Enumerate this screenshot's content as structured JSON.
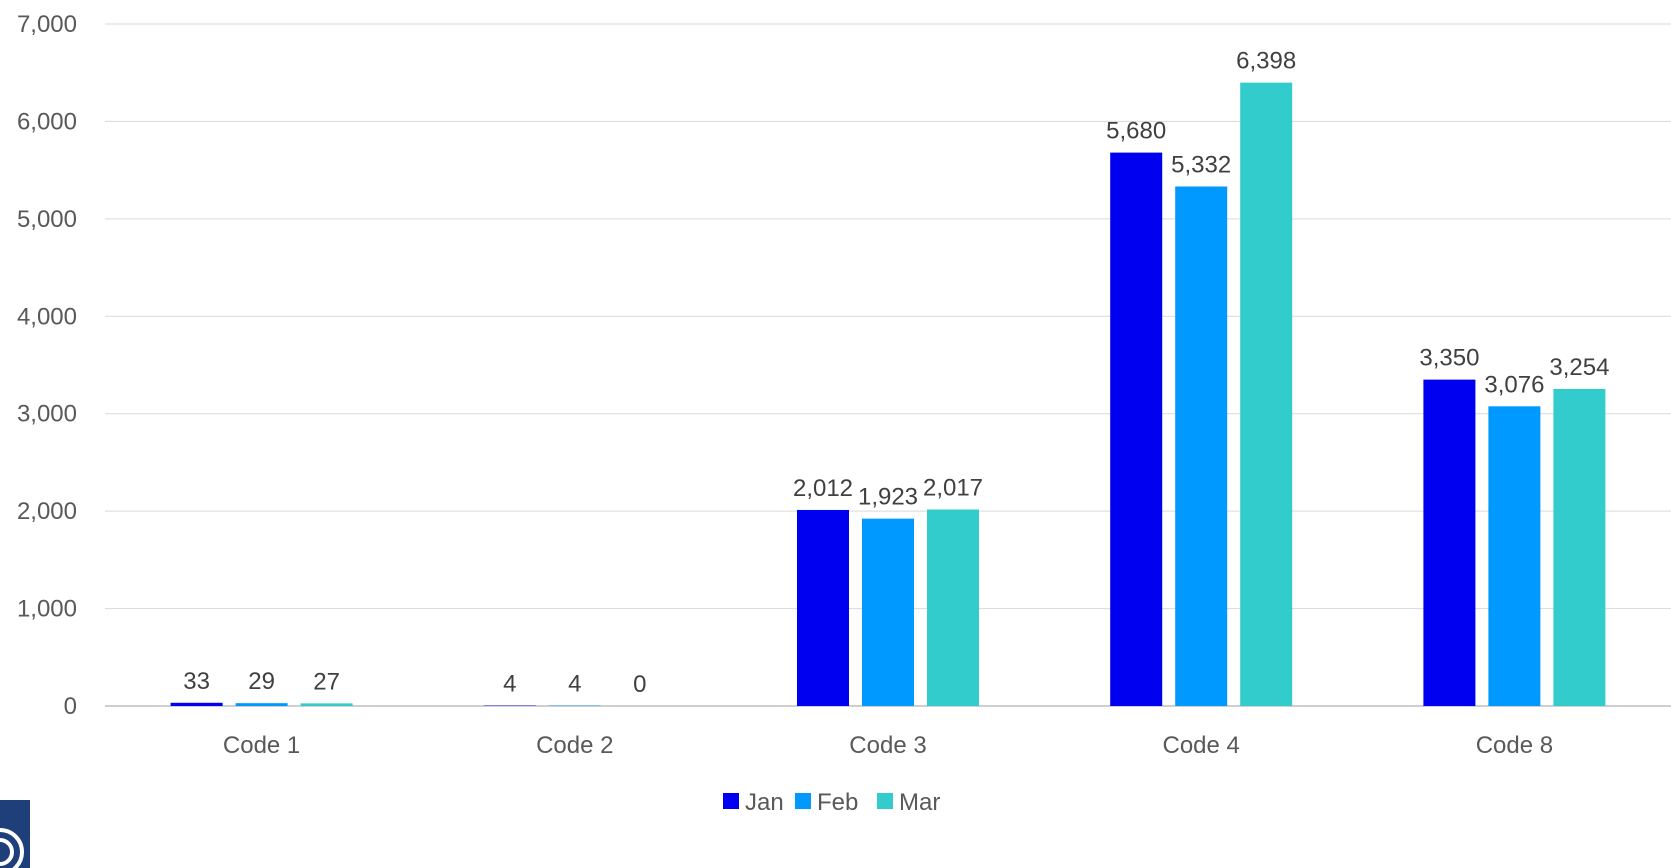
{
  "chart_data": {
    "type": "bar",
    "categories": [
      "Code 1",
      "Code 2",
      "Code 3",
      "Code 4",
      "Code 8"
    ],
    "series": [
      {
        "name": "Jan",
        "color": "#0000F0",
        "values": [
          33,
          4,
          2012,
          5680,
          3350
        ]
      },
      {
        "name": "Feb",
        "color": "#0099FF",
        "values": [
          29,
          4,
          1923,
          5332,
          3076
        ]
      },
      {
        "name": "Mar",
        "color": "#33CCCC",
        "values": [
          27,
          0,
          2017,
          6398,
          3254
        ]
      }
    ],
    "ylim": [
      0,
      7000
    ],
    "yticks": [
      0,
      1000,
      2000,
      3000,
      4000,
      5000,
      6000,
      7000
    ],
    "ytick_labels": [
      "0",
      "1,000",
      "2,000",
      "3,000",
      "4,000",
      "5,000",
      "6,000",
      "7,000"
    ],
    "data_labels": [
      [
        "33",
        "4",
        "2,012",
        "5,680",
        "3,350"
      ],
      [
        "29",
        "4",
        "1,923",
        "5,332",
        "3,076"
      ],
      [
        "27",
        "0",
        "2,017",
        "6,398",
        "3,254"
      ]
    ],
    "grid": true,
    "legend_position": "bottom",
    "logo_icon": "circular-logo-icon"
  }
}
